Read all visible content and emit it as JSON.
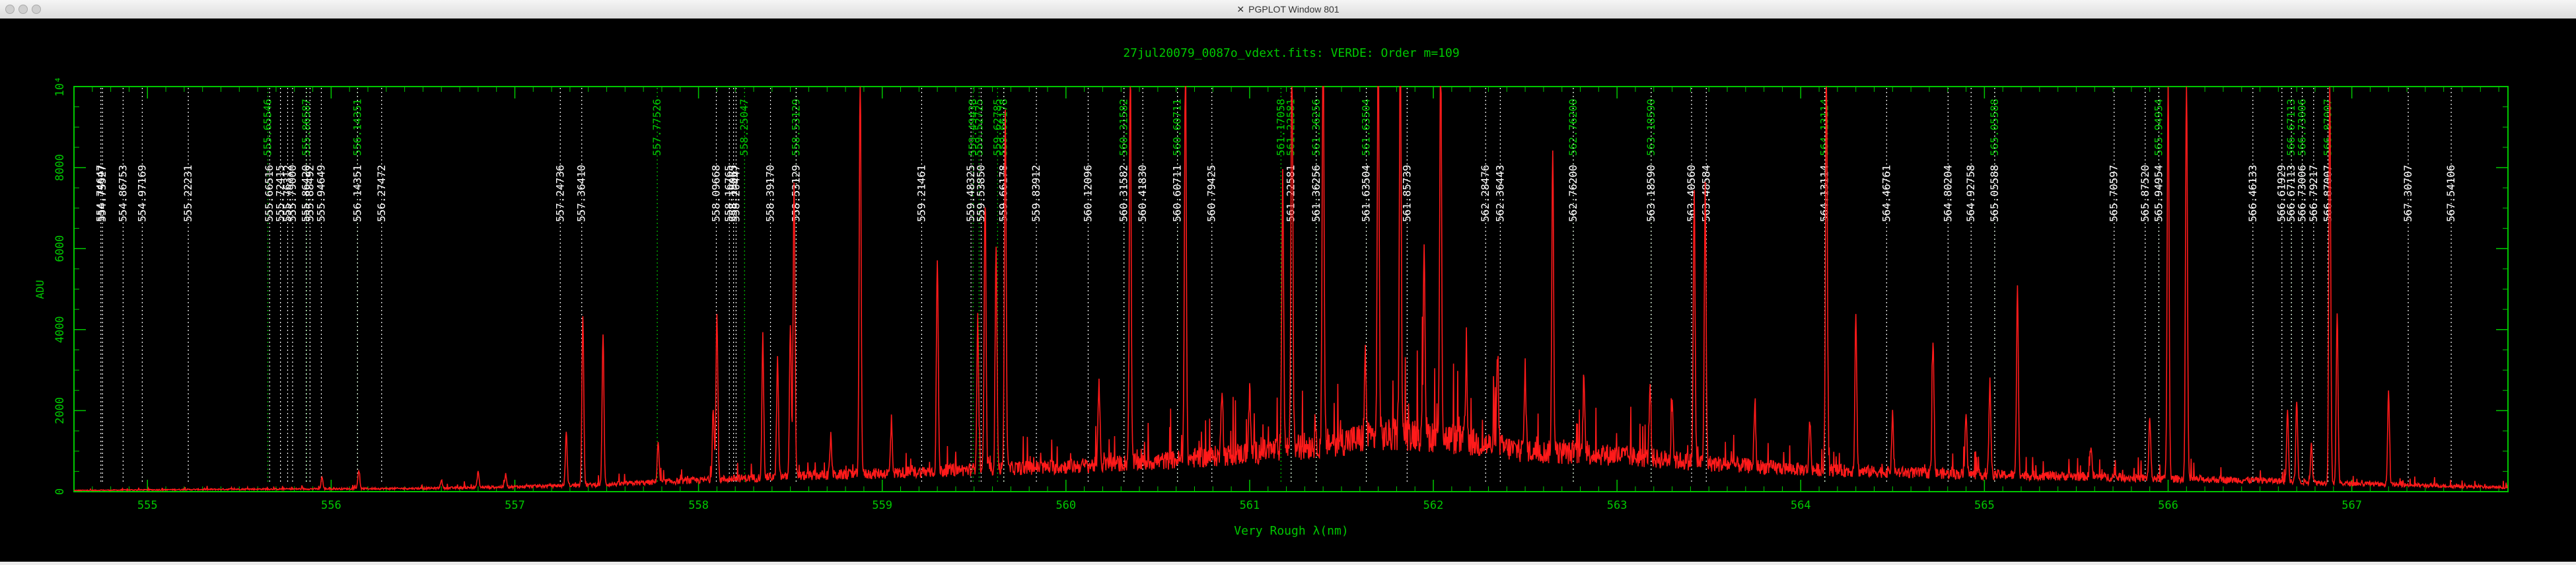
{
  "window": {
    "title": "PGPLOT Window 801",
    "icon": "x11-icon",
    "close_color": "#cfcfcf"
  },
  "chart_data": {
    "type": "line",
    "title": "27jul20079_0087o_vdext.fits: VERDE: Order m=109",
    "xlabel": "Very Rough λ(nm)",
    "ylabel": "ADU",
    "xlim": [
      554.6,
      567.85
    ],
    "ylim": [
      0,
      10000
    ],
    "x_ticks": [
      555,
      556,
      557,
      558,
      559,
      560,
      561,
      562,
      563,
      564,
      565,
      566,
      567
    ],
    "y_ticks": [
      0,
      2000,
      4000,
      6000,
      8000,
      10000
    ],
    "y_tick_labels": [
      "0",
      "2000",
      "4000",
      "6000",
      "8000",
      "10⁴"
    ],
    "colors": {
      "axes": "#00c800",
      "spectrum": "#ff1a1a",
      "white_lines": "#ffffff",
      "green_lines": "#00c800",
      "background": "#000000"
    },
    "grid": false,
    "baseline": [
      [
        554.6,
        30
      ],
      [
        555.5,
        60
      ],
      [
        556.5,
        80
      ],
      [
        557.0,
        120
      ],
      [
        557.5,
        180
      ],
      [
        558.0,
        280
      ],
      [
        558.5,
        380
      ],
      [
        559.0,
        450
      ],
      [
        559.5,
        550
      ],
      [
        560.0,
        620
      ],
      [
        560.5,
        750
      ],
      [
        561.0,
        950
      ],
      [
        561.5,
        1250
      ],
      [
        561.9,
        1450
      ],
      [
        562.1,
        1300
      ],
      [
        562.5,
        1000
      ],
      [
        563.0,
        900
      ],
      [
        563.5,
        700
      ],
      [
        564.0,
        550
      ],
      [
        564.5,
        480
      ],
      [
        565.0,
        420
      ],
      [
        565.5,
        380
      ],
      [
        566.0,
        320
      ],
      [
        566.5,
        280
      ],
      [
        567.0,
        200
      ],
      [
        567.85,
        100
      ]
    ],
    "peaks": [
      [
        555.95,
        300
      ],
      [
        556.15,
        450
      ],
      [
        556.6,
        200
      ],
      [
        556.8,
        400
      ],
      [
        556.95,
        320
      ],
      [
        557.28,
        1300
      ],
      [
        557.37,
        4200
      ],
      [
        557.48,
        3700
      ],
      [
        557.78,
        1000
      ],
      [
        558.08,
        1800
      ],
      [
        558.1,
        4100
      ],
      [
        558.35,
        3300
      ],
      [
        558.43,
        2900
      ],
      [
        558.5,
        3800
      ],
      [
        558.52,
        7300
      ],
      [
        558.72,
        950
      ],
      [
        558.88,
        10000
      ],
      [
        559.05,
        1200
      ],
      [
        559.3,
        5200
      ],
      [
        559.52,
        3700
      ],
      [
        559.56,
        6500
      ],
      [
        559.62,
        5400
      ],
      [
        559.67,
        8800
      ],
      [
        560.18,
        2000
      ],
      [
        560.35,
        9800
      ],
      [
        560.65,
        10000
      ],
      [
        560.85,
        1800
      ],
      [
        561.0,
        1500
      ],
      [
        561.18,
        6800
      ],
      [
        561.23,
        10000
      ],
      [
        561.4,
        10000
      ],
      [
        561.63,
        2000
      ],
      [
        561.7,
        10000
      ],
      [
        561.82,
        9900
      ],
      [
        561.95,
        4800
      ],
      [
        562.04,
        10000
      ],
      [
        562.18,
        2000
      ],
      [
        562.35,
        2200
      ],
      [
        562.5,
        2000
      ],
      [
        562.65,
        7300
      ],
      [
        562.82,
        2000
      ],
      [
        563.18,
        1800
      ],
      [
        563.3,
        1500
      ],
      [
        563.42,
        6600
      ],
      [
        563.48,
        6800
      ],
      [
        563.75,
        1400
      ],
      [
        564.05,
        1200
      ],
      [
        564.14,
        10000
      ],
      [
        564.3,
        3900
      ],
      [
        564.5,
        1400
      ],
      [
        564.72,
        3300
      ],
      [
        564.9,
        1600
      ],
      [
        565.03,
        2300
      ],
      [
        565.18,
        4600
      ],
      [
        565.58,
        750
      ],
      [
        565.9,
        1500
      ],
      [
        566.0,
        10000
      ],
      [
        566.1,
        10000
      ],
      [
        566.65,
        1800
      ],
      [
        566.7,
        2000
      ],
      [
        566.78,
        950
      ],
      [
        566.88,
        10000
      ],
      [
        566.92,
        4200
      ],
      [
        567.2,
        2300
      ]
    ],
    "line_ids_white": [
      "554.74647",
      "554.75527",
      "554.86753",
      "554.97169",
      "555.22231",
      "555.66516",
      "555.72415",
      "555.76312",
      "555.79000",
      "555.86420",
      "555.88492",
      "555.94649",
      "556.14351",
      "556.27472",
      "557.24736",
      "557.36410",
      "558.09668",
      "558.16765",
      "558.19065",
      "558.20447",
      "558.39170",
      "558.53129",
      "559.21461",
      "559.48325",
      "559.53850",
      "559.66178",
      "559.83912",
      "560.12096",
      "560.31582",
      "560.41830",
      "560.60711",
      "560.79425",
      "561.22581",
      "561.36256",
      "561.63504",
      "561.85739",
      "562.28476",
      "562.36443",
      "562.76200",
      "563.18590",
      "563.40560",
      "563.48584",
      "564.13114",
      "564.46761",
      "564.80204",
      "564.92758",
      "565.05588",
      "565.70597",
      "565.87520",
      "565.94954",
      "566.46133",
      "566.61929",
      "566.67113",
      "566.73006",
      "566.79217",
      "566.87007",
      "567.30707",
      "567.54106"
    ],
    "line_ids_green": [
      "555.65546",
      "555.86587",
      "556.14351",
      "557.77526",
      "558.25047",
      "558.53129",
      "559.49438",
      "559.52725",
      "559.62785",
      "559.66178",
      "560.31582",
      "560.60711",
      "561.17058",
      "561.22581",
      "561.36256",
      "561.63504",
      "562.76200",
      "563.18590",
      "564.13114",
      "565.05588",
      "565.94954",
      "566.67113",
      "566.73006",
      "566.87007"
    ]
  }
}
